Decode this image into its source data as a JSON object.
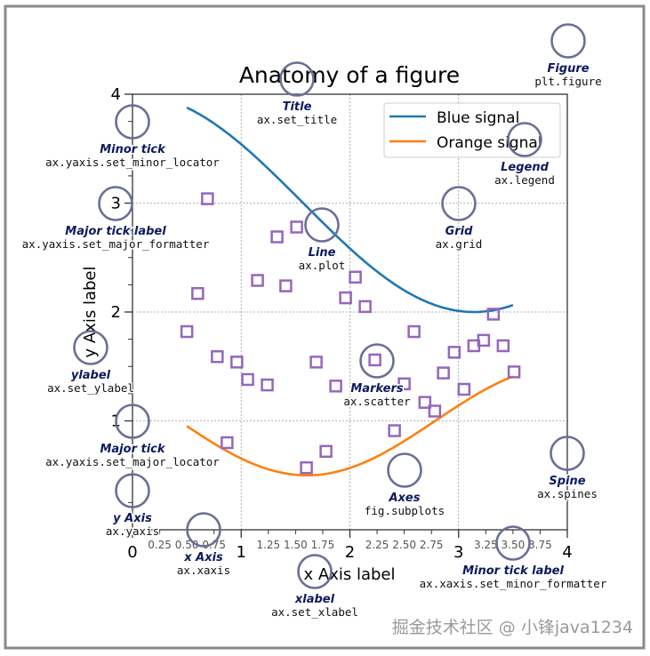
{
  "chart_data": {
    "type": "line",
    "title": "Anatomy of a figure",
    "xlabel": "x Axis label",
    "ylabel": "y Axis label",
    "xlim": [
      0,
      4
    ],
    "ylim": [
      0,
      4
    ],
    "grid": true,
    "legend_placement": "upper right",
    "major_ticks": [
      0,
      1,
      2,
      3,
      4
    ],
    "major_tick_labels": [
      "0",
      "1",
      "2",
      "3",
      "4"
    ],
    "x_minor_tick_labels": [
      "0.25",
      "0.50",
      "0.75",
      "1.25",
      "1.50",
      "1.75",
      "2.25",
      "2.50",
      "2.75",
      "3.25",
      "3.50",
      "3.75"
    ],
    "series": [
      {
        "name": "Blue signal",
        "kind": "line",
        "color": "#1f77b4",
        "function": "3 + cos(x)",
        "x_range": [
          0.5,
          3.5
        ]
      },
      {
        "name": "Orange signal",
        "kind": "line",
        "color": "#ff7f0e",
        "function": "1 + cos(1 + x/0.75)/2",
        "x_range": [
          0.5,
          3.5
        ]
      },
      {
        "kind": "scatter",
        "marker": "square",
        "color": "#9467bd",
        "points": [
          [
            0.69,
            3.04
          ],
          [
            0.6,
            2.17
          ],
          [
            0.5,
            1.82
          ],
          [
            0.78,
            1.59
          ],
          [
            0.96,
            1.54
          ],
          [
            1.06,
            1.38
          ],
          [
            1.24,
            1.33
          ],
          [
            0.87,
            0.8
          ],
          [
            1.33,
            2.69
          ],
          [
            1.51,
            2.78
          ],
          [
            1.15,
            2.29
          ],
          [
            1.41,
            2.24
          ],
          [
            1.6,
            0.57
          ],
          [
            1.78,
            0.72
          ],
          [
            1.69,
            1.54
          ],
          [
            1.87,
            1.32
          ],
          [
            1.96,
            2.13
          ],
          [
            2.05,
            2.32
          ],
          [
            2.14,
            2.05
          ],
          [
            2.23,
            1.56
          ],
          [
            2.41,
            0.91
          ],
          [
            2.5,
            1.34
          ],
          [
            2.59,
            1.82
          ],
          [
            2.69,
            1.17
          ],
          [
            2.78,
            1.09
          ],
          [
            2.86,
            1.44
          ],
          [
            2.96,
            1.63
          ],
          [
            3.05,
            1.29
          ],
          [
            3.14,
            1.69
          ],
          [
            3.23,
            1.74
          ],
          [
            3.32,
            1.98
          ],
          [
            3.41,
            1.69
          ],
          [
            3.51,
            1.45
          ]
        ]
      }
    ]
  },
  "annotations": [
    {
      "name": "Figure",
      "code": "plt.figure"
    },
    {
      "name": "Title",
      "code": "ax.set_title"
    },
    {
      "name": "Minor tick",
      "code": "ax.yaxis.set_minor_locator"
    },
    {
      "name": "Major tick label",
      "code": "ax.yaxis.set_major_formatter"
    },
    {
      "name": "Line",
      "code": "ax.plot"
    },
    {
      "name": "Grid",
      "code": "ax.grid"
    },
    {
      "name": "Legend",
      "code": "ax.legend"
    },
    {
      "name": "ylabel",
      "code": "ax.set_ylabel"
    },
    {
      "name": "Markers",
      "code": "ax.scatter"
    },
    {
      "name": "Major tick",
      "code": "ax.yaxis.set_major_locator"
    },
    {
      "name": "Axes",
      "code": "fig.subplots"
    },
    {
      "name": "Spine",
      "code": "ax.spines"
    },
    {
      "name": "y Axis",
      "code": "ax.yaxis"
    },
    {
      "name": "x Axis",
      "code": "ax.xaxis"
    },
    {
      "name": "Minor tick label",
      "code": "ax.xaxis.set_minor_formatter"
    },
    {
      "name": "xlabel",
      "code": "ax.set_xlabel"
    }
  ],
  "colors": {
    "annotation_circle": "#6a6f96",
    "annotation_text": "#0c1a5e",
    "frame": "#8a8a8a"
  },
  "watermark": "掘金技术社区 @ 小锋java1234"
}
